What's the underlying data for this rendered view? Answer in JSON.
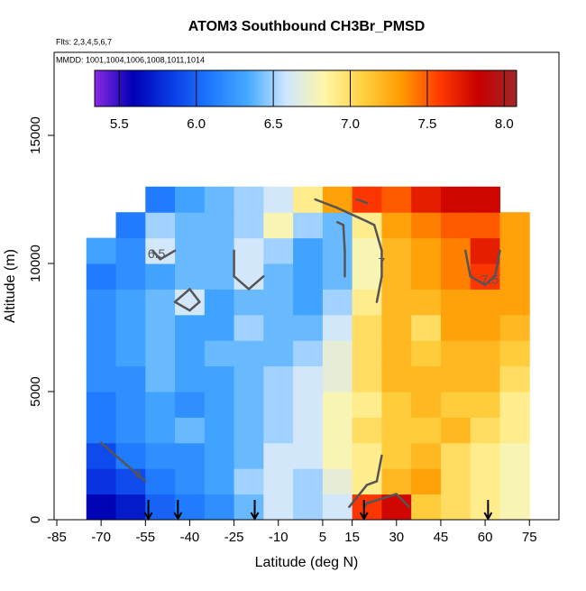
{
  "chart_data": {
    "type": "heatmap",
    "title": "ATOM3 Southbound CH3Br_PMSD",
    "subtitle": "Flts: 2,3,4,5,6,7",
    "annotation": "MMDD: 1001,1004,1006,1008,1011,1014",
    "x_label": "Latitude (deg N)",
    "y_label": "Altitude (m)",
    "xlim": [
      -85,
      85
    ],
    "ylim": [
      0,
      18240
    ],
    "xticks": [
      -85,
      -70,
      -55,
      -40,
      -25,
      -10,
      5,
      15,
      30,
      45,
      60,
      75
    ],
    "yticks": [
      0,
      5000,
      10000,
      15000
    ],
    "x": [
      -70,
      -60,
      -50,
      -40,
      -30,
      -20,
      -10,
      0,
      10,
      20,
      30,
      40,
      50,
      60,
      70
    ],
    "y": [
      500,
      1500,
      2500,
      3500,
      4500,
      5500,
      6500,
      7500,
      8500,
      9500,
      10500,
      11500,
      12500
    ],
    "z": [
      [
        5.6,
        5.7,
        6.0,
        6.1,
        6.2,
        6.4,
        6.6,
        6.5,
        6.6,
        7.6,
        7.8,
        7.1,
        7.0,
        6.9,
        6.8
      ],
      [
        5.8,
        5.9,
        6.1,
        6.2,
        6.3,
        6.5,
        6.6,
        6.5,
        6.7,
        6.9,
        7.2,
        7.3,
        7.0,
        6.9,
        6.8
      ],
      [
        5.9,
        6.1,
        6.2,
        6.2,
        6.3,
        6.4,
        6.6,
        6.6,
        6.8,
        6.9,
        7.1,
        7.2,
        7.0,
        6.9,
        6.8
      ],
      [
        6.1,
        6.2,
        6.3,
        6.4,
        6.3,
        6.4,
        6.5,
        6.6,
        6.8,
        7.0,
        7.1,
        7.1,
        7.2,
        7.0,
        6.9
      ],
      [
        6.1,
        6.2,
        6.3,
        6.2,
        6.3,
        6.4,
        6.5,
        6.6,
        6.8,
        6.9,
        7.1,
        7.2,
        7.1,
        7.1,
        6.9
      ],
      [
        6.2,
        6.2,
        6.4,
        6.3,
        6.3,
        6.4,
        6.5,
        6.6,
        6.7,
        7.0,
        7.2,
        7.2,
        7.2,
        7.2,
        7.0
      ],
      [
        6.2,
        6.3,
        6.4,
        6.3,
        6.4,
        6.4,
        6.4,
        6.5,
        6.7,
        7.0,
        7.2,
        7.1,
        7.2,
        7.2,
        7.1
      ],
      [
        6.2,
        6.3,
        6.4,
        6.3,
        6.3,
        6.5,
        6.4,
        6.4,
        6.6,
        7.0,
        7.2,
        7.0,
        7.3,
        7.3,
        7.2
      ],
      [
        6.2,
        6.3,
        6.4,
        6.6,
        6.3,
        6.4,
        6.4,
        6.3,
        6.5,
        6.9,
        7.2,
        7.2,
        7.3,
        7.3,
        7.3
      ],
      [
        6.1,
        6.2,
        6.3,
        6.4,
        6.4,
        6.6,
        6.4,
        6.3,
        6.4,
        6.8,
        7.2,
        7.3,
        7.4,
        7.6,
        7.3
      ],
      [
        6.3,
        6.2,
        6.6,
        6.4,
        6.4,
        6.6,
        6.5,
        6.3,
        6.4,
        6.8,
        7.2,
        7.3,
        7.4,
        7.7,
        7.3
      ],
      [
        null,
        6.1,
        6.5,
        6.4,
        6.4,
        6.5,
        6.8,
        6.5,
        6.4,
        6.9,
        7.3,
        7.4,
        7.5,
        7.5,
        7.3
      ],
      [
        null,
        null,
        6.1,
        6.3,
        6.4,
        6.5,
        6.6,
        6.9,
        7.3,
        7.6,
        7.5,
        7.7,
        7.8,
        7.8,
        null
      ]
    ],
    "clim": [
      5.34,
      8.08
    ],
    "colorbar_ticks": [
      5.5,
      {
        "value": 6,
        "label": "6.0"
      },
      6.5,
      {
        "value": 7,
        "label": "7.0"
      },
      7.5,
      {
        "value": 8,
        "label": "8.0"
      }
    ],
    "colors": [
      "#8a2be2",
      "#0000b4",
      "#0a3ce6",
      "#1e78ff",
      "#46aaff",
      "#cfe6ff",
      "#fff6a8",
      "#ffd040",
      "#ff9a00",
      "#ff3a00",
      "#c80000",
      "#a02828"
    ],
    "contour_levels": [
      6,
      6.5,
      7,
      7.5
    ],
    "contour_color": "#555555",
    "profile_markers": [
      -54,
      -44,
      -18,
      19,
      61
    ]
  }
}
